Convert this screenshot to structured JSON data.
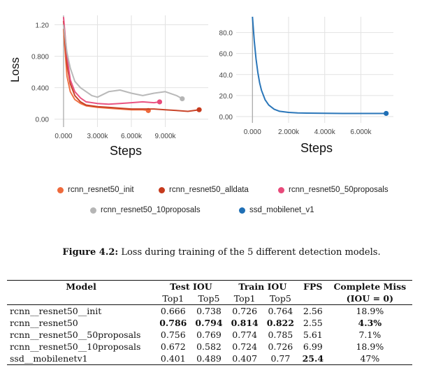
{
  "chart_data": [
    {
      "type": "line",
      "xlabel": "Steps",
      "ylabel": "Loss",
      "x_ticks": [
        "0.000",
        "3.000k",
        "6.000k",
        "9.000k"
      ],
      "y_ticks": [
        "0.00",
        "0.400",
        "0.800",
        "1.20"
      ],
      "xlim": [
        -800,
        12800
      ],
      "ylim": [
        -0.1,
        1.32
      ],
      "series": [
        {
          "name": "rcnn_resnet50_init",
          "color": "#ee6a3c",
          "x": [
            0,
            300,
            600,
            1000,
            1500,
            2000,
            3000,
            4000,
            5000,
            6000,
            7000,
            7500
          ],
          "y": [
            1.15,
            0.55,
            0.35,
            0.25,
            0.2,
            0.17,
            0.15,
            0.14,
            0.13,
            0.12,
            0.12,
            0.11
          ]
        },
        {
          "name": "rcnn_resnet50_alldata",
          "color": "#c63a1d",
          "x": [
            0,
            300,
            600,
            1000,
            1500,
            2000,
            3000,
            4000,
            5000,
            6000,
            7000,
            8000,
            9000,
            10000,
            11000,
            12000
          ],
          "y": [
            1.25,
            0.7,
            0.45,
            0.3,
            0.22,
            0.18,
            0.16,
            0.15,
            0.14,
            0.13,
            0.13,
            0.13,
            0.12,
            0.11,
            0.1,
            0.12
          ]
        },
        {
          "name": "rcnn_resnet50_50proposals",
          "color": "#e84a7a",
          "x": [
            0,
            300,
            600,
            1000,
            1500,
            2000,
            3000,
            4000,
            5000,
            6000,
            7000,
            8000,
            8500
          ],
          "y": [
            1.3,
            0.8,
            0.5,
            0.35,
            0.27,
            0.22,
            0.2,
            0.19,
            0.2,
            0.21,
            0.22,
            0.21,
            0.22
          ]
        },
        {
          "name": "rcnn_resnet50_10proposals",
          "color": "#b5b5b5",
          "x": [
            0,
            300,
            600,
            1000,
            1500,
            2000,
            2500,
            3000,
            4000,
            5000,
            6000,
            7000,
            8000,
            9000,
            10000,
            10500
          ],
          "y": [
            1.2,
            0.85,
            0.65,
            0.48,
            0.4,
            0.35,
            0.3,
            0.28,
            0.35,
            0.37,
            0.33,
            0.3,
            0.33,
            0.35,
            0.3,
            0.26
          ]
        }
      ]
    },
    {
      "type": "line",
      "xlabel": "Steps",
      "ylabel": "",
      "x_ticks": [
        "0.000",
        "2.000k",
        "4.000k",
        "6.000k"
      ],
      "y_ticks": [
        "0.00",
        "20.0",
        "40.0",
        "60.0",
        "80.0"
      ],
      "xlim": [
        -900,
        7800
      ],
      "ylim": [
        -6,
        95
      ],
      "series": [
        {
          "name": "ssd_mobilenet_v1",
          "color": "#1f6fb5",
          "x": [
            0,
            100,
            200,
            300,
            400,
            500,
            700,
            900,
            1200,
            1500,
            2000,
            2500,
            3000,
            4000,
            5000,
            6000,
            7000,
            7400
          ],
          "y": [
            95,
            72,
            55,
            42,
            32,
            25,
            16,
            11,
            7,
            5,
            4,
            3.5,
            3.3,
            3.1,
            3,
            3,
            3,
            3
          ]
        }
      ]
    }
  ],
  "legend": {
    "items": [
      {
        "label": "rcnn_resnet50_init",
        "color": "#ee6a3c"
      },
      {
        "label": "rcnn_resnet50_alldata",
        "color": "#c63a1d"
      },
      {
        "label": "rcnn_resnet50_50proposals",
        "color": "#e84a7a"
      },
      {
        "label": "rcnn_resnet50_10proposals",
        "color": "#b5b5b5"
      },
      {
        "label": "ssd_mobilenet_v1",
        "color": "#1f6fb5"
      }
    ]
  },
  "caption": {
    "label": "Figure 4.2:",
    "text": "Loss during training of the 5 different detection models."
  },
  "table": {
    "headers": {
      "model": "Model",
      "test_iou": "Test IOU",
      "train_iou": "Train IOU",
      "fps": "FPS",
      "complete_miss": "Complete Miss",
      "complete_miss_sub": "(IOU = 0)",
      "top1": "Top1",
      "top5": "Top5"
    },
    "rows": [
      {
        "model": "rcnn__resnet50__init",
        "test_top1": "0.666",
        "test_top5": "0.738",
        "train_top1": "0.726",
        "train_top5": "0.764",
        "fps": "2.56",
        "miss": "18.9%"
      },
      {
        "model": "rcnn__resnet50",
        "test_top1": "0.786",
        "test_top5": "0.794",
        "train_top1": "0.814",
        "train_top5": "0.822",
        "fps": "2.55",
        "miss": "4.3%"
      },
      {
        "model": "rcnn__resnet50__50proposals",
        "test_top1": "0.756",
        "test_top5": "0.769",
        "train_top1": "0.774",
        "train_top5": "0.785",
        "fps": "5.61",
        "miss": "7.1%"
      },
      {
        "model": "rcnn__resnet50__10proposals",
        "test_top1": "0.672",
        "test_top5": "0.582",
        "train_top1": "0.724",
        "train_top5": "0.726",
        "fps": "6.99",
        "miss": "18.9%"
      },
      {
        "model": "ssd__mobilenetv1",
        "test_top1": "0.401",
        "test_top5": "0.489",
        "train_top1": "0.407",
        "train_top5": "0.77",
        "fps": "25.4",
        "miss": "47%"
      }
    ]
  }
}
